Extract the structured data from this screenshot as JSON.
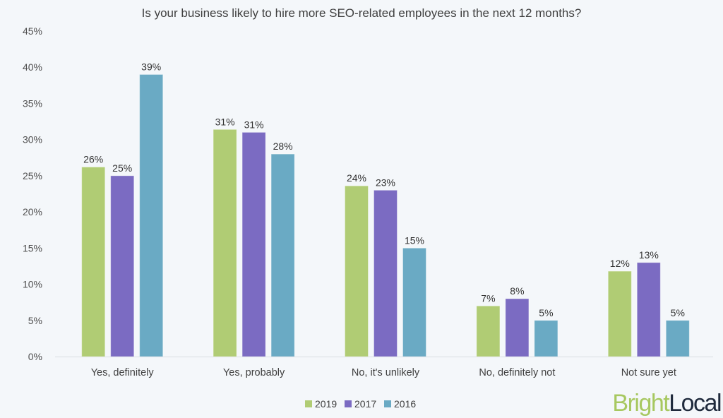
{
  "chart_data": {
    "type": "bar",
    "title": "Is your business likely to hire more SEO-related employees in the next 12 months?",
    "xlabel": "",
    "ylabel": "",
    "ylim": [
      0,
      45
    ],
    "y_ticks": [
      0,
      5,
      10,
      15,
      20,
      25,
      30,
      35,
      40,
      45
    ],
    "y_tick_labels": [
      "0%",
      "5%",
      "10%",
      "15%",
      "20%",
      "25%",
      "30%",
      "35%",
      "40%",
      "45%"
    ],
    "grid": false,
    "legend_position": "bottom-center",
    "categories": [
      "Yes, definitely",
      "Yes, probably",
      "No, it's unlikely",
      "No, definitely not",
      "Not sure yet"
    ],
    "series": [
      {
        "name": "2019",
        "color": "#b0cc74",
        "values": [
          26.2,
          31.4,
          23.6,
          7.0,
          11.8
        ],
        "labels": [
          "26%",
          "31%",
          "24%",
          "7%",
          "12%"
        ]
      },
      {
        "name": "2017",
        "color": "#7b6bc2",
        "values": [
          25.0,
          31.0,
          23.0,
          8.0,
          13.0
        ],
        "labels": [
          "25%",
          "31%",
          "23%",
          "8%",
          "13%"
        ]
      },
      {
        "name": "2016",
        "color": "#6aaac4",
        "values": [
          39.0,
          28.0,
          15.0,
          5.0,
          5.0
        ],
        "labels": [
          "39%",
          "28%",
          "15%",
          "5%",
          "5%"
        ]
      }
    ]
  },
  "branding": {
    "logo_part1": "Bright",
    "logo_part2": "Local"
  }
}
